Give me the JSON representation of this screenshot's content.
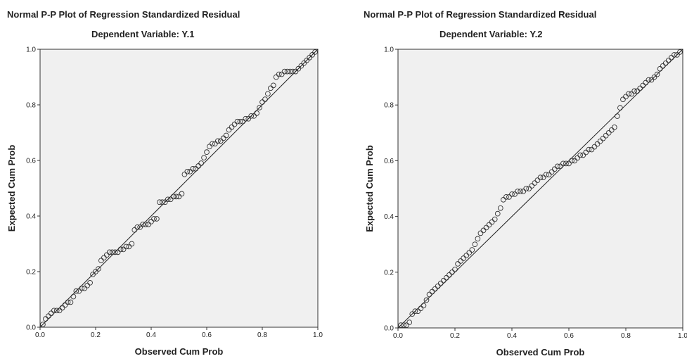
{
  "colors": {
    "plot_background": "#f0f0f0",
    "frame": "#333333",
    "line": "#222222",
    "marker": "#333333",
    "text": "#222222"
  },
  "chart_data": [
    {
      "type": "scatter",
      "title": "Normal P-P Plot of Regression Standardized Residual",
      "subtitle": "Dependent Variable: Y.1",
      "xlabel": "Observed Cum Prob",
      "ylabel": "Expected Cum Prob",
      "xlim": [
        0,
        1
      ],
      "ylim": [
        0,
        1
      ],
      "xticks": [
        "0.0",
        "0.2",
        "0.4",
        "0.6",
        "0.8",
        "1.0"
      ],
      "yticks": [
        "0.0",
        "0.2",
        "0.4",
        "0.6",
        "0.8",
        "1.0"
      ],
      "grid": false,
      "reference_line": [
        [
          0,
          0
        ],
        [
          1,
          1
        ]
      ],
      "points": [
        [
          0.01,
          0.01
        ],
        [
          0.02,
          0.03
        ],
        [
          0.03,
          0.04
        ],
        [
          0.04,
          0.05
        ],
        [
          0.05,
          0.06
        ],
        [
          0.06,
          0.06
        ],
        [
          0.07,
          0.06
        ],
        [
          0.08,
          0.07
        ],
        [
          0.09,
          0.08
        ],
        [
          0.1,
          0.09
        ],
        [
          0.11,
          0.09
        ],
        [
          0.12,
          0.11
        ],
        [
          0.13,
          0.13
        ],
        [
          0.14,
          0.13
        ],
        [
          0.15,
          0.14
        ],
        [
          0.16,
          0.14
        ],
        [
          0.17,
          0.15
        ],
        [
          0.18,
          0.16
        ],
        [
          0.19,
          0.19
        ],
        [
          0.2,
          0.2
        ],
        [
          0.21,
          0.21
        ],
        [
          0.22,
          0.24
        ],
        [
          0.23,
          0.25
        ],
        [
          0.24,
          0.26
        ],
        [
          0.25,
          0.27
        ],
        [
          0.26,
          0.27
        ],
        [
          0.27,
          0.27
        ],
        [
          0.28,
          0.27
        ],
        [
          0.29,
          0.28
        ],
        [
          0.3,
          0.28
        ],
        [
          0.31,
          0.29
        ],
        [
          0.32,
          0.29
        ],
        [
          0.33,
          0.3
        ],
        [
          0.34,
          0.35
        ],
        [
          0.35,
          0.36
        ],
        [
          0.36,
          0.36
        ],
        [
          0.37,
          0.37
        ],
        [
          0.38,
          0.37
        ],
        [
          0.39,
          0.37
        ],
        [
          0.4,
          0.38
        ],
        [
          0.41,
          0.39
        ],
        [
          0.42,
          0.39
        ],
        [
          0.43,
          0.45
        ],
        [
          0.44,
          0.45
        ],
        [
          0.45,
          0.45
        ],
        [
          0.46,
          0.46
        ],
        [
          0.47,
          0.46
        ],
        [
          0.48,
          0.47
        ],
        [
          0.49,
          0.47
        ],
        [
          0.5,
          0.47
        ],
        [
          0.51,
          0.48
        ],
        [
          0.52,
          0.55
        ],
        [
          0.53,
          0.56
        ],
        [
          0.54,
          0.56
        ],
        [
          0.55,
          0.57
        ],
        [
          0.56,
          0.57
        ],
        [
          0.57,
          0.58
        ],
        [
          0.58,
          0.59
        ],
        [
          0.59,
          0.61
        ],
        [
          0.6,
          0.63
        ],
        [
          0.61,
          0.65
        ],
        [
          0.62,
          0.66
        ],
        [
          0.63,
          0.66
        ],
        [
          0.64,
          0.67
        ],
        [
          0.65,
          0.67
        ],
        [
          0.66,
          0.68
        ],
        [
          0.67,
          0.69
        ],
        [
          0.68,
          0.71
        ],
        [
          0.69,
          0.72
        ],
        [
          0.7,
          0.73
        ],
        [
          0.71,
          0.74
        ],
        [
          0.72,
          0.74
        ],
        [
          0.73,
          0.74
        ],
        [
          0.74,
          0.75
        ],
        [
          0.75,
          0.75
        ],
        [
          0.76,
          0.76
        ],
        [
          0.77,
          0.76
        ],
        [
          0.78,
          0.77
        ],
        [
          0.79,
          0.79
        ],
        [
          0.8,
          0.81
        ],
        [
          0.81,
          0.82
        ],
        [
          0.82,
          0.84
        ],
        [
          0.83,
          0.86
        ],
        [
          0.84,
          0.87
        ],
        [
          0.85,
          0.9
        ],
        [
          0.86,
          0.91
        ],
        [
          0.87,
          0.91
        ],
        [
          0.88,
          0.92
        ],
        [
          0.89,
          0.92
        ],
        [
          0.9,
          0.92
        ],
        [
          0.91,
          0.92
        ],
        [
          0.92,
          0.92
        ],
        [
          0.93,
          0.93
        ],
        [
          0.94,
          0.94
        ],
        [
          0.95,
          0.95
        ],
        [
          0.96,
          0.96
        ],
        [
          0.97,
          0.97
        ],
        [
          0.98,
          0.98
        ],
        [
          0.99,
          0.99
        ]
      ]
    },
    {
      "type": "scatter",
      "title": "Normal P-P Plot of Regression Standardized Residual",
      "subtitle": "Dependent Variable: Y.2",
      "xlabel": "Observed Cum Prob",
      "ylabel": "Expected Cum Prob",
      "xlim": [
        0,
        1
      ],
      "ylim": [
        0,
        1
      ],
      "xticks": [
        "0.0",
        "0.2",
        "0.4",
        "0.6",
        "0.8",
        "1.0"
      ],
      "yticks": [
        "0.0",
        "0.2",
        "0.4",
        "0.6",
        "0.8",
        "1.0"
      ],
      "grid": false,
      "reference_line": [
        [
          0,
          0
        ],
        [
          1,
          1
        ]
      ],
      "points": [
        [
          0.01,
          0.01
        ],
        [
          0.02,
          0.01
        ],
        [
          0.03,
          0.01
        ],
        [
          0.04,
          0.02
        ],
        [
          0.05,
          0.05
        ],
        [
          0.06,
          0.06
        ],
        [
          0.07,
          0.06
        ],
        [
          0.08,
          0.07
        ],
        [
          0.09,
          0.08
        ],
        [
          0.1,
          0.1
        ],
        [
          0.11,
          0.12
        ],
        [
          0.12,
          0.13
        ],
        [
          0.13,
          0.14
        ],
        [
          0.14,
          0.15
        ],
        [
          0.15,
          0.16
        ],
        [
          0.16,
          0.17
        ],
        [
          0.17,
          0.18
        ],
        [
          0.18,
          0.19
        ],
        [
          0.19,
          0.2
        ],
        [
          0.2,
          0.21
        ],
        [
          0.21,
          0.23
        ],
        [
          0.22,
          0.24
        ],
        [
          0.23,
          0.25
        ],
        [
          0.24,
          0.26
        ],
        [
          0.25,
          0.27
        ],
        [
          0.26,
          0.28
        ],
        [
          0.27,
          0.3
        ],
        [
          0.28,
          0.32
        ],
        [
          0.29,
          0.34
        ],
        [
          0.3,
          0.35
        ],
        [
          0.31,
          0.36
        ],
        [
          0.32,
          0.37
        ],
        [
          0.33,
          0.38
        ],
        [
          0.34,
          0.39
        ],
        [
          0.35,
          0.41
        ],
        [
          0.36,
          0.43
        ],
        [
          0.37,
          0.46
        ],
        [
          0.38,
          0.47
        ],
        [
          0.39,
          0.47
        ],
        [
          0.4,
          0.48
        ],
        [
          0.41,
          0.48
        ],
        [
          0.42,
          0.49
        ],
        [
          0.43,
          0.49
        ],
        [
          0.44,
          0.49
        ],
        [
          0.45,
          0.5
        ],
        [
          0.46,
          0.5
        ],
        [
          0.47,
          0.51
        ],
        [
          0.48,
          0.52
        ],
        [
          0.49,
          0.53
        ],
        [
          0.5,
          0.54
        ],
        [
          0.51,
          0.54
        ],
        [
          0.52,
          0.55
        ],
        [
          0.53,
          0.55
        ],
        [
          0.54,
          0.56
        ],
        [
          0.55,
          0.57
        ],
        [
          0.56,
          0.58
        ],
        [
          0.57,
          0.58
        ],
        [
          0.58,
          0.59
        ],
        [
          0.59,
          0.59
        ],
        [
          0.6,
          0.59
        ],
        [
          0.61,
          0.6
        ],
        [
          0.62,
          0.6
        ],
        [
          0.63,
          0.61
        ],
        [
          0.64,
          0.62
        ],
        [
          0.65,
          0.62
        ],
        [
          0.66,
          0.63
        ],
        [
          0.67,
          0.64
        ],
        [
          0.68,
          0.64
        ],
        [
          0.69,
          0.65
        ],
        [
          0.7,
          0.66
        ],
        [
          0.71,
          0.67
        ],
        [
          0.72,
          0.68
        ],
        [
          0.73,
          0.69
        ],
        [
          0.74,
          0.7
        ],
        [
          0.75,
          0.71
        ],
        [
          0.76,
          0.72
        ],
        [
          0.77,
          0.76
        ],
        [
          0.78,
          0.79
        ],
        [
          0.79,
          0.82
        ],
        [
          0.8,
          0.83
        ],
        [
          0.81,
          0.84
        ],
        [
          0.82,
          0.84
        ],
        [
          0.83,
          0.85
        ],
        [
          0.84,
          0.85
        ],
        [
          0.85,
          0.86
        ],
        [
          0.86,
          0.87
        ],
        [
          0.87,
          0.88
        ],
        [
          0.88,
          0.89
        ],
        [
          0.89,
          0.89
        ],
        [
          0.9,
          0.9
        ],
        [
          0.91,
          0.91
        ],
        [
          0.92,
          0.93
        ],
        [
          0.93,
          0.94
        ],
        [
          0.94,
          0.95
        ],
        [
          0.95,
          0.96
        ],
        [
          0.96,
          0.97
        ],
        [
          0.97,
          0.98
        ],
        [
          0.98,
          0.98
        ],
        [
          0.99,
          0.99
        ]
      ]
    }
  ]
}
